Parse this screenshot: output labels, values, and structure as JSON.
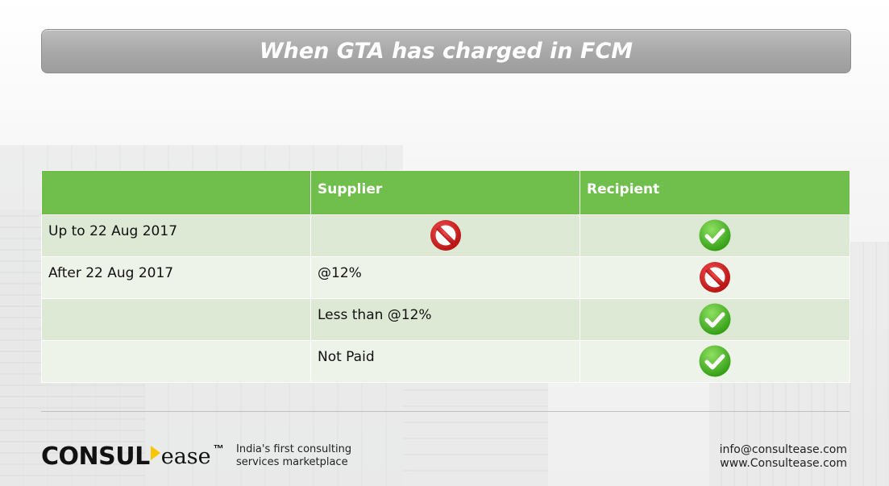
{
  "title": "When GTA has charged in FCM",
  "table": {
    "headers": [
      "",
      "Supplier",
      "Recipient"
    ],
    "rows": [
      {
        "period": "Up to 22 Aug 2017",
        "supplier_text": "",
        "supplier_icon": "prohibited-icon",
        "recipient_icon": "check-icon"
      },
      {
        "period": "After 22 Aug 2017",
        "supplier_text": "@12%",
        "supplier_icon": "",
        "recipient_icon": "prohibited-icon"
      },
      {
        "period": "",
        "supplier_text": "Less than @12%",
        "supplier_icon": "",
        "recipient_icon": "check-icon"
      },
      {
        "period": "",
        "supplier_text": "Not Paid",
        "supplier_icon": "",
        "recipient_icon": "check-icon"
      }
    ]
  },
  "footer": {
    "logo_main": "CONSUL",
    "logo_ease": "ease",
    "logo_tm": "™",
    "tagline_line1": "India's first consulting",
    "tagline_line2": "services marketplace",
    "email": "info@consultease.com",
    "website": "www.Consultease.com"
  },
  "colors": {
    "header_green": "#70bf4c",
    "row_light": "#dde8d5",
    "row_lighter": "#eef3ea",
    "prohibited_red": "#d01a1a",
    "check_green": "#3db11b",
    "logo_accent": "#f7c600"
  }
}
